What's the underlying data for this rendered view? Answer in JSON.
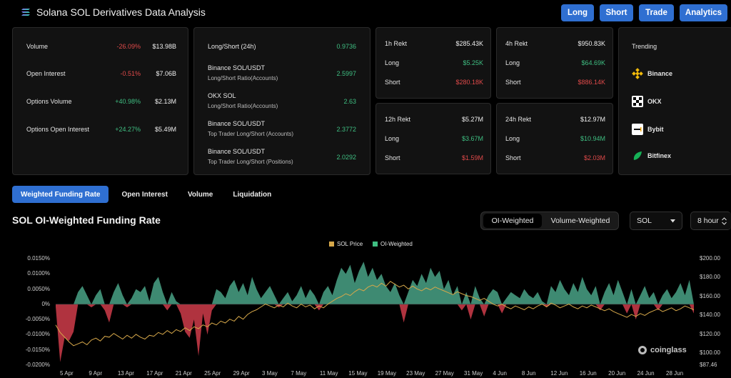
{
  "app": {
    "title": "Solana SOL Derivatives Data Analysis"
  },
  "nav": [
    "Long",
    "Short",
    "Trade",
    "Analytics"
  ],
  "overview": [
    {
      "label": "Volume",
      "change": "-26.09%",
      "dir": "neg",
      "value": "$13.98B"
    },
    {
      "label": "Open Interest",
      "change": "-0.51%",
      "dir": "neg",
      "value": "$7.06B"
    },
    {
      "label": "Options Volume",
      "change": "+40.98%",
      "dir": "pos",
      "value": "$2.13M"
    },
    {
      "label": "Options Open Interest",
      "change": "+24.27%",
      "dir": "pos",
      "value": "$5.49M"
    }
  ],
  "ratios": [
    {
      "label": "Long/Short (24h)",
      "sub": "",
      "value": "0.9736"
    },
    {
      "label": "Binance SOL/USDT",
      "sub": "Long/Short Ratio(Accounts)",
      "value": "2.5997"
    },
    {
      "label": "OKX SOL",
      "sub": "Long/Short Ratio(Accounts)",
      "value": "2.63"
    },
    {
      "label": "Binance SOL/USDT",
      "sub": "Top Trader Long/Short (Accounts)",
      "value": "2.3772"
    },
    {
      "label": "Binance SOL/USDT",
      "sub": "Top Trader Long/Short (Positions)",
      "value": "2.0292"
    }
  ],
  "rekt": [
    {
      "title": "1h Rekt",
      "total": "$285.43K",
      "long": "$5.25K",
      "short": "$280.18K"
    },
    {
      "title": "4h Rekt",
      "total": "$950.83K",
      "long": "$64.69K",
      "short": "$886.14K"
    },
    {
      "title": "12h Rekt",
      "total": "$5.27M",
      "long": "$3.67M",
      "short": "$1.59M"
    },
    {
      "title": "24h Rekt",
      "total": "$12.97M",
      "long": "$10.94M",
      "short": "$2.03M"
    }
  ],
  "rekt_labels": {
    "long": "Long",
    "short": "Short"
  },
  "trending": {
    "title": "Trending",
    "items": [
      "Binance",
      "OKX",
      "Bybit",
      "Bitfinex"
    ]
  },
  "tabs": [
    "Weighted Funding Rate",
    "Open Interest",
    "Volume",
    "Liquidation"
  ],
  "section": {
    "title": "SOL OI-Weighted Funding Rate",
    "segments": [
      "OI-Weighted",
      "Volume-Weighted"
    ],
    "coin": "SOL",
    "interval": "8 hour",
    "watermark": "coinglass"
  },
  "colors": {
    "accent": "#2f6fd1",
    "positive": "#3fbf82",
    "negative": "#e04a4a",
    "price": "#d7a84a",
    "area_pos": "#3e8a72",
    "area_neg": "#b0333f"
  },
  "chart_data": {
    "type": "area",
    "legend": [
      "SOL Price",
      "OI-Weighted"
    ],
    "y_left_ticks": [
      "0.0150%",
      "0.0100%",
      "0.0050%",
      "0%",
      "-0.0050%",
      "-0.0100%",
      "-0.0150%",
      "-0.0200%"
    ],
    "y_left_range": [
      -0.02,
      0.015
    ],
    "y_right_ticks": [
      "$200.00",
      "$180.00",
      "$160.00",
      "$140.00",
      "$120.00",
      "$100.00",
      "$87.46"
    ],
    "y_right_range": [
      87.46,
      200
    ],
    "x_ticks": [
      "5 Apr",
      "9 Apr",
      "13 Apr",
      "17 Apr",
      "21 Apr",
      "25 Apr",
      "29 Apr",
      "3 May",
      "7 May",
      "11 May",
      "15 May",
      "19 May",
      "23 May",
      "27 May",
      "31 May",
      "4 Jun",
      "8 Jun",
      "12 Jun",
      "16 Jun",
      "20 Jun",
      "24 Jun",
      "28 Jun"
    ],
    "funding_rate": [
      -0.0008,
      -0.019,
      -0.011,
      -0.012,
      -0.009,
      0.004,
      0.006,
      0.003,
      -0.001,
      0.003,
      0.005,
      -0.002,
      -0.006,
      0.004,
      0.007,
      0.003,
      -0.001,
      0.002,
      0.005,
      0.004,
      0.006,
      0.001,
      0.007,
      0.009,
      0.004,
      -0.002,
      0.004,
      0.001,
      -0.003,
      -0.009,
      -0.011,
      -0.005,
      -0.017,
      -0.003,
      -0.01,
      -0.002,
      0.005,
      0.004,
      0.002,
      0.006,
      0.008,
      0.004,
      0.007,
      0.003,
      0.009,
      0.005,
      0.002,
      0.004,
      0.006,
      0.003,
      -0.001,
      0.002,
      0.004,
      0.001,
      0.003,
      0.006,
      0.002,
      0.005,
      0.003,
      -0.002,
      0.004,
      0.006,
      0.003,
      0.008,
      0.012,
      0.01,
      0.013,
      0.007,
      0.011,
      0.014,
      0.009,
      0.012,
      0.008,
      0.01,
      0.006,
      0.004,
      0.007,
      0.003,
      -0.006,
      0.004,
      0.008,
      0.006,
      0.01,
      0.007,
      0.012,
      0.009,
      0.011,
      0.005,
      0.008,
      0.003,
      0.006,
      -0.002,
      0.004,
      -0.005,
      0.006,
      0.002,
      -0.004,
      0.003,
      0.005,
      0.004,
      -0.003,
      0.002,
      0.004,
      0.003,
      0.002,
      0.005,
      0.003,
      0.002,
      0.004,
      0.001,
      -0.001,
      0.006,
      0.004,
      0.008,
      0.005,
      0.003,
      0.007,
      0.004,
      0.009,
      0.005,
      0.003,
      0.006,
      -0.002,
      0.004,
      0.007,
      0.003,
      0.008,
      0.004,
      -0.003,
      0.005,
      -0.005,
      0.003,
      0.006,
      0.002,
      0.004,
      -0.002,
      0.003,
      0.005,
      0.002,
      0.004,
      0.007,
      0.003,
      0.008,
      -0.003
    ],
    "sol_price": [
      130,
      122,
      117,
      112,
      108,
      110,
      112,
      109,
      114,
      116,
      113,
      118,
      117,
      121,
      118,
      115,
      119,
      116,
      120,
      117,
      115,
      119,
      118,
      122,
      120,
      124,
      121,
      125,
      123,
      127,
      124,
      128,
      126,
      130,
      128,
      132,
      130,
      134,
      132,
      136,
      134,
      139,
      136,
      141,
      144,
      146,
      149,
      152,
      150,
      148,
      151,
      149,
      153,
      150,
      148,
      152,
      149,
      151,
      147,
      150,
      148,
      152,
      155,
      158,
      160,
      163,
      161,
      165,
      168,
      166,
      170,
      172,
      170,
      174,
      171,
      176,
      173,
      170,
      172,
      168,
      171,
      168,
      166,
      169,
      167,
      170,
      168,
      166,
      164,
      162,
      165,
      163,
      161,
      160,
      158,
      156,
      158,
      155,
      152,
      150,
      152,
      149,
      147,
      150,
      148,
      146,
      149,
      147,
      150,
      152,
      149,
      153,
      151,
      148,
      150,
      152,
      149,
      147,
      150,
      148,
      151,
      149,
      147,
      145,
      147,
      144,
      142,
      140,
      138,
      141,
      139,
      142,
      140,
      143,
      145,
      147,
      144,
      146,
      148,
      145,
      147,
      150,
      148,
      146
    ],
    "grid": false,
    "legend_position": "top-center"
  }
}
